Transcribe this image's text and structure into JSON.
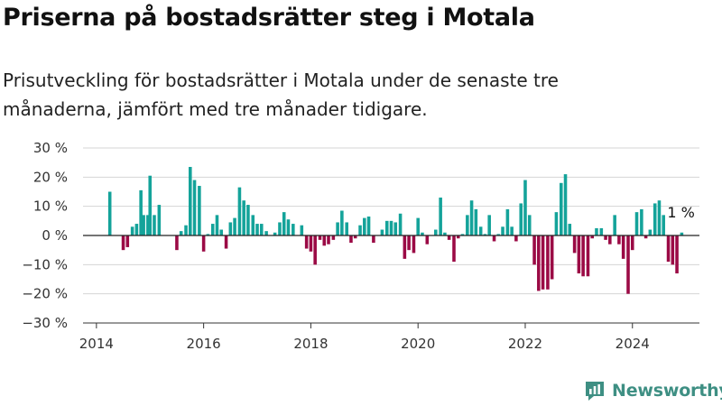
{
  "header": {
    "title": "Priserna på bostadsrätter steg i Motala",
    "subtitle": "Prisutveckling för bostadsrätter i Motala under de senaste tre månaderna, jämfört med tre månader tidigare."
  },
  "brand": {
    "name": "Newsworthy",
    "color": "#3e8f83",
    "icon": "newsworthy-logo-icon"
  },
  "colors": {
    "positive": "#14a39a",
    "negative": "#9b0a45",
    "zero_line": "#222222"
  },
  "chart_data": {
    "type": "bar",
    "title": "Priserna på bostadsrätter steg i Motala",
    "subtitle": "Prisutveckling för bostadsrätter i Motala under de senaste tre månaderna, jämfört med tre månader tidigare.",
    "xlabel": "",
    "ylabel": "",
    "ylim": [
      -30,
      30
    ],
    "xlim": [
      2013.75,
      2025.25
    ],
    "grid": true,
    "unit": "%",
    "y_ticks": [
      {
        "value": 30,
        "label": "30 %"
      },
      {
        "value": 20,
        "label": "20 %"
      },
      {
        "value": 10,
        "label": "10 %"
      },
      {
        "value": 0,
        "label": "0 %"
      },
      {
        "value": -10,
        "label": "−10 %"
      },
      {
        "value": -20,
        "label": "−20 %"
      },
      {
        "value": -30,
        "label": "−30 %"
      }
    ],
    "x_ticks": [
      {
        "value": 2014,
        "label": "2014"
      },
      {
        "value": 2016,
        "label": "2016"
      },
      {
        "value": 2018,
        "label": "2018"
      },
      {
        "value": 2020,
        "label": "2020"
      },
      {
        "value": 2022,
        "label": "2022"
      },
      {
        "value": 2024,
        "label": "2024"
      }
    ],
    "bar_width_years": 0.06,
    "annotation": {
      "x": 2024.92,
      "value": 1,
      "label": "1 %"
    },
    "points": [
      {
        "x": 2014.25,
        "value": 15
      },
      {
        "x": 2014.5,
        "value": -5
      },
      {
        "x": 2014.58,
        "value": -4
      },
      {
        "x": 2014.67,
        "value": 3
      },
      {
        "x": 2014.75,
        "value": 4
      },
      {
        "x": 2014.83,
        "value": 15.5
      },
      {
        "x": 2014.88,
        "value": 7
      },
      {
        "x": 2014.96,
        "value": 7
      },
      {
        "x": 2015.0,
        "value": 20.5
      },
      {
        "x": 2015.08,
        "value": 7
      },
      {
        "x": 2015.17,
        "value": 10.5
      },
      {
        "x": 2015.5,
        "value": -5
      },
      {
        "x": 2015.58,
        "value": 1.5
      },
      {
        "x": 2015.67,
        "value": 3.5
      },
      {
        "x": 2015.75,
        "value": 23.5
      },
      {
        "x": 2015.83,
        "value": 19
      },
      {
        "x": 2015.92,
        "value": 17
      },
      {
        "x": 2016.0,
        "value": -5.5
      },
      {
        "x": 2016.08,
        "value": 0.5
      },
      {
        "x": 2016.17,
        "value": 4
      },
      {
        "x": 2016.25,
        "value": 7
      },
      {
        "x": 2016.33,
        "value": 2
      },
      {
        "x": 2016.42,
        "value": -4.5
      },
      {
        "x": 2016.5,
        "value": 4.5
      },
      {
        "x": 2016.58,
        "value": 6
      },
      {
        "x": 2016.67,
        "value": 16.5
      },
      {
        "x": 2016.75,
        "value": 12
      },
      {
        "x": 2016.83,
        "value": 10.5
      },
      {
        "x": 2016.92,
        "value": 7
      },
      {
        "x": 2017.0,
        "value": 4
      },
      {
        "x": 2017.08,
        "value": 4
      },
      {
        "x": 2017.17,
        "value": 1.5
      },
      {
        "x": 2017.33,
        "value": 1
      },
      {
        "x": 2017.42,
        "value": 4.5
      },
      {
        "x": 2017.5,
        "value": 8
      },
      {
        "x": 2017.58,
        "value": 5.5
      },
      {
        "x": 2017.67,
        "value": 4
      },
      {
        "x": 2017.83,
        "value": 3.5
      },
      {
        "x": 2017.92,
        "value": -4.5
      },
      {
        "x": 2018.0,
        "value": -5.5
      },
      {
        "x": 2018.08,
        "value": -10
      },
      {
        "x": 2018.17,
        "value": -1.5
      },
      {
        "x": 2018.25,
        "value": -3.5
      },
      {
        "x": 2018.33,
        "value": -3
      },
      {
        "x": 2018.42,
        "value": -1.5
      },
      {
        "x": 2018.5,
        "value": 4.5
      },
      {
        "x": 2018.58,
        "value": 8.5
      },
      {
        "x": 2018.67,
        "value": 4.5
      },
      {
        "x": 2018.75,
        "value": -2.5
      },
      {
        "x": 2018.83,
        "value": -1
      },
      {
        "x": 2018.92,
        "value": 3.5
      },
      {
        "x": 2019.0,
        "value": 6
      },
      {
        "x": 2019.08,
        "value": 6.5
      },
      {
        "x": 2019.17,
        "value": -2.5
      },
      {
        "x": 2019.33,
        "value": 2
      },
      {
        "x": 2019.42,
        "value": 5
      },
      {
        "x": 2019.5,
        "value": 5
      },
      {
        "x": 2019.58,
        "value": 4.5
      },
      {
        "x": 2019.67,
        "value": 7.5
      },
      {
        "x": 2019.75,
        "value": -8
      },
      {
        "x": 2019.83,
        "value": -5
      },
      {
        "x": 2019.92,
        "value": -6
      },
      {
        "x": 2020.0,
        "value": 6
      },
      {
        "x": 2020.08,
        "value": 1
      },
      {
        "x": 2020.17,
        "value": -3
      },
      {
        "x": 2020.33,
        "value": 2
      },
      {
        "x": 2020.42,
        "value": 13
      },
      {
        "x": 2020.5,
        "value": 1
      },
      {
        "x": 2020.58,
        "value": -1.5
      },
      {
        "x": 2020.67,
        "value": -9
      },
      {
        "x": 2020.75,
        "value": -1
      },
      {
        "x": 2020.83,
        "value": 0.5
      },
      {
        "x": 2020.92,
        "value": 7
      },
      {
        "x": 2021.0,
        "value": 12
      },
      {
        "x": 2021.08,
        "value": 9
      },
      {
        "x": 2021.17,
        "value": 3
      },
      {
        "x": 2021.25,
        "value": 0.5
      },
      {
        "x": 2021.33,
        "value": 7
      },
      {
        "x": 2021.42,
        "value": -2
      },
      {
        "x": 2021.5,
        "value": 0.5
      },
      {
        "x": 2021.58,
        "value": 3
      },
      {
        "x": 2021.67,
        "value": 9
      },
      {
        "x": 2021.75,
        "value": 3
      },
      {
        "x": 2021.83,
        "value": -2
      },
      {
        "x": 2021.92,
        "value": 11
      },
      {
        "x": 2022.0,
        "value": 19
      },
      {
        "x": 2022.08,
        "value": 7
      },
      {
        "x": 2022.17,
        "value": -10
      },
      {
        "x": 2022.25,
        "value": -19
      },
      {
        "x": 2022.33,
        "value": -18.5
      },
      {
        "x": 2022.42,
        "value": -18.5
      },
      {
        "x": 2022.5,
        "value": -15
      },
      {
        "x": 2022.58,
        "value": 8
      },
      {
        "x": 2022.67,
        "value": 18
      },
      {
        "x": 2022.75,
        "value": 21
      },
      {
        "x": 2022.83,
        "value": 4
      },
      {
        "x": 2022.92,
        "value": -6
      },
      {
        "x": 2023.0,
        "value": -13
      },
      {
        "x": 2023.08,
        "value": -14
      },
      {
        "x": 2023.17,
        "value": -14
      },
      {
        "x": 2023.25,
        "value": -1
      },
      {
        "x": 2023.33,
        "value": 2.5
      },
      {
        "x": 2023.42,
        "value": 2.5
      },
      {
        "x": 2023.5,
        "value": -1.5
      },
      {
        "x": 2023.58,
        "value": -3
      },
      {
        "x": 2023.67,
        "value": 7
      },
      {
        "x": 2023.75,
        "value": -3
      },
      {
        "x": 2023.83,
        "value": -8
      },
      {
        "x": 2023.92,
        "value": -20
      },
      {
        "x": 2024.0,
        "value": -5
      },
      {
        "x": 2024.08,
        "value": 8
      },
      {
        "x": 2024.17,
        "value": 9
      },
      {
        "x": 2024.25,
        "value": -1
      },
      {
        "x": 2024.33,
        "value": 2
      },
      {
        "x": 2024.42,
        "value": 11
      },
      {
        "x": 2024.5,
        "value": 12
      },
      {
        "x": 2024.58,
        "value": 7
      },
      {
        "x": 2024.67,
        "value": -9
      },
      {
        "x": 2024.75,
        "value": -10
      },
      {
        "x": 2024.83,
        "value": -13
      },
      {
        "x": 2024.92,
        "value": 1
      }
    ]
  }
}
